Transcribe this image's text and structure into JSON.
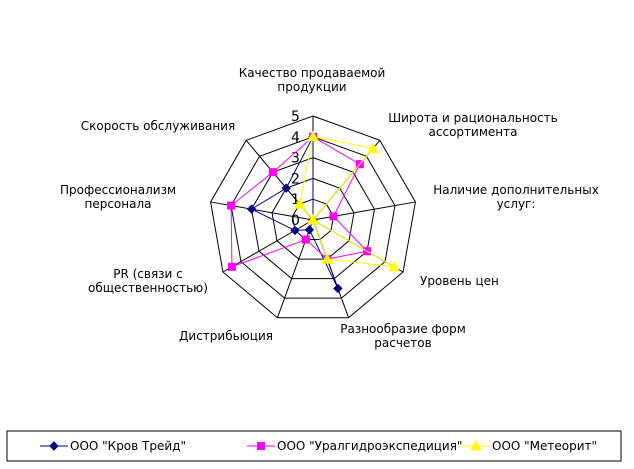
{
  "chart_data": {
    "type": "radar",
    "title": "",
    "categories": [
      [
        "Качество продаваемой",
        "продукции"
      ],
      [
        "Широта и рациональность",
        "ассортимента"
      ],
      [
        "Наличие дополнительных",
        "услуг:"
      ],
      [
        "Уровень цен"
      ],
      [
        "Разнообразие форм",
        "расчетов"
      ],
      [
        "Дистрибьюция"
      ],
      [
        "PR (связи с",
        "общественностью)"
      ],
      [
        "Профессионализм",
        "персонала"
      ],
      [
        "Скорость обслуживания"
      ]
    ],
    "rlim": [
      0,
      5
    ],
    "ticks": [
      "0",
      "1",
      "2",
      "3",
      "4",
      "5"
    ],
    "grid": true,
    "legend": "bottom",
    "series": [
      {
        "name": "ООО  \"Кров Трейд\"",
        "color": "#000080",
        "marker": "diamond",
        "values": [
          4,
          0,
          0,
          0,
          3.5,
          0.5,
          1,
          3,
          2
        ]
      },
      {
        "name": "ООО  \"Уралгидроэкспедиция\"",
        "color": "#ff00ff",
        "marker": "square",
        "values": [
          4,
          3.5,
          1,
          3,
          2,
          1,
          4.5,
          4,
          3
        ]
      },
      {
        "name": "ООО \"Метеорит\"",
        "color": "#ffff00",
        "marker": "triangle",
        "values": [
          4,
          4.5,
          0,
          4.5,
          2,
          0,
          0,
          0,
          1
        ]
      }
    ]
  }
}
